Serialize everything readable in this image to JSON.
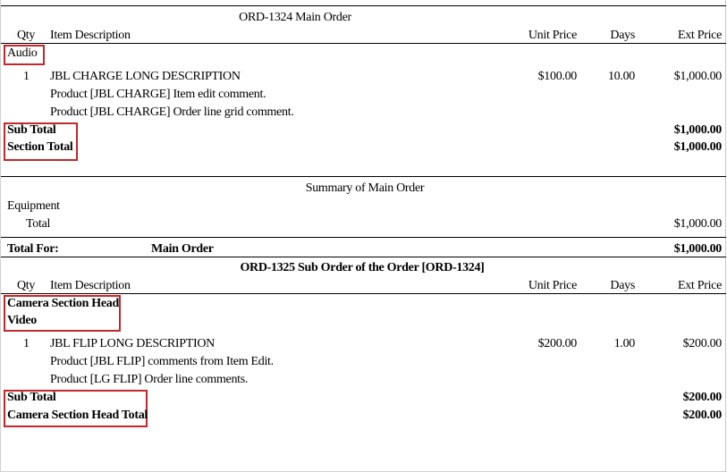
{
  "columns": {
    "qty": "Qty",
    "description": "Item Description",
    "unit_price": "Unit Price",
    "days": "Days",
    "ext_price": "Ext Price"
  },
  "order1": {
    "title": "ORD-1324  Main Order",
    "section": "Audio",
    "item": {
      "qty": "1",
      "description": "JBL CHARGE LONG DESCRIPTION",
      "unit_price": "$100.00",
      "days": "10.00",
      "ext_price": "$1,000.00"
    },
    "comments": [
      "Product [JBL CHARGE] Item edit comment.",
      "Product  [JBL CHARGE] Order line grid comment."
    ],
    "sub_total_label": "Sub Total",
    "sub_total": "$1,000.00",
    "section_total_label": "Section Total",
    "section_total": "$1,000.00"
  },
  "summary": {
    "title": "Summary of Main Order",
    "category": "Equipment",
    "total_label": "Total",
    "total": "$1,000.00",
    "total_for_label": "Total For:",
    "total_for_name": "Main Order",
    "total_for_value": "$1,000.00"
  },
  "order2": {
    "title": "ORD-1325  Sub Order of the Order [ORD-1324]",
    "section_head": "Camera Section Head",
    "section": "Video",
    "item": {
      "qty": "1",
      "description": "JBL FLIP LONG DESCRIPTION",
      "unit_price": "$200.00",
      "days": "1.00",
      "ext_price": "$200.00"
    },
    "comments": [
      "Product [JBL FLIP] comments from Item Edit.",
      "Product [LG FLIP] Order line comments."
    ],
    "sub_total_label": "Sub Total",
    "sub_total": "$200.00",
    "section_total_label": "Camera Section Head Total",
    "section_total": "$200.00"
  },
  "highlight_color": "#c0282d"
}
